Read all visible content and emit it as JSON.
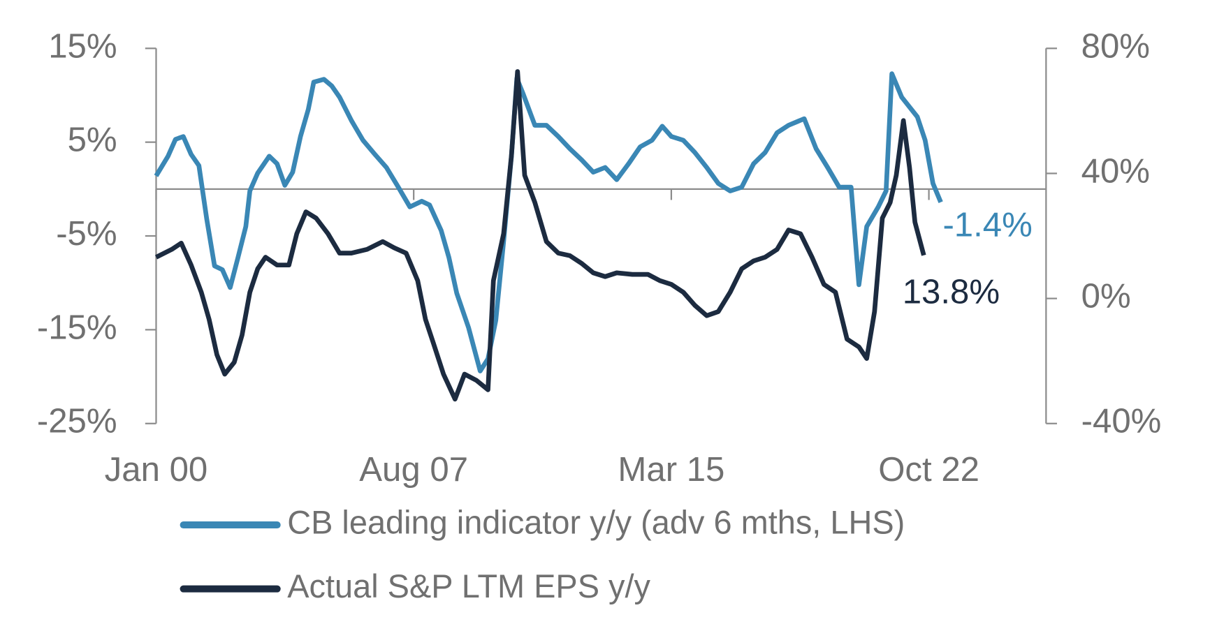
{
  "chart_data": {
    "type": "line",
    "xlim": [
      2000,
      2026.2
    ],
    "xticks": [
      {
        "value": 2000,
        "label": "Jan 00"
      },
      {
        "value": 2007.583,
        "label": "Aug 07"
      },
      {
        "value": 2015.167,
        "label": "Mar 15"
      },
      {
        "value": 2022.75,
        "label": "Oct 22"
      }
    ],
    "ylim": [
      -25,
      15
    ],
    "yticks": [
      {
        "value": 15,
        "label": "15%"
      },
      {
        "value": 5,
        "label": "5%"
      },
      {
        "value": -5,
        "label": "-5%"
      },
      {
        "value": -15,
        "label": "-15%"
      },
      {
        "value": -25,
        "label": "-25%"
      }
    ],
    "y2lim": [
      -40,
      80
    ],
    "y2ticks": [
      {
        "value": 80,
        "label": "80%"
      },
      {
        "value": 40,
        "label": "40%"
      },
      {
        "value": 0,
        "label": "0%"
      },
      {
        "value": -40,
        "label": "-40%"
      }
    ],
    "series": [
      {
        "name": "CB leading indicator y/y (adv 6 mths, LHS)",
        "color": "#3a87b5",
        "end_label": "-1.4%",
        "x": [
          2000,
          2000.35,
          2000.57,
          2000.8,
          2001.03,
          2001.26,
          2001.49,
          2001.72,
          2001.95,
          2002.18,
          2002.41,
          2002.64,
          2002.76,
          2002.99,
          2003.33,
          2003.56,
          2003.79,
          2004.02,
          2004.25,
          2004.48,
          2004.64,
          2004.94,
          2005.17,
          2005.4,
          2005.75,
          2006.09,
          2006.44,
          2006.78,
          2007.13,
          2007.47,
          2007.82,
          2008.05,
          2008.39,
          2008.62,
          2008.85,
          2009.2,
          2009.54,
          2009.77,
          2010,
          2010.23,
          2010.46,
          2010.62,
          2010.8,
          2011.15,
          2011.49,
          2011.84,
          2012.18,
          2012.53,
          2012.87,
          2013.22,
          2013.56,
          2013.91,
          2014.25,
          2014.6,
          2014.9,
          2015.17,
          2015.52,
          2015.86,
          2016.21,
          2016.55,
          2016.9,
          2017.24,
          2017.59,
          2017.93,
          2018.28,
          2018.62,
          2019.08,
          2019.43,
          2019.77,
          2020.11,
          2020.46,
          2020.69,
          2020.92,
          2021.26,
          2021.49,
          2021.66,
          2021.95,
          2022.41,
          2022.64,
          2022.87,
          2023.1
        ],
        "values": [
          1.4,
          3.5,
          5.3,
          5.6,
          3.7,
          2.5,
          -3.2,
          -8.2,
          -8.6,
          -10.5,
          -7.3,
          -4,
          -0.2,
          1.7,
          3.5,
          2.7,
          0.4,
          1.8,
          5.6,
          8.5,
          11.4,
          11.7,
          11,
          9.8,
          7.3,
          5.2,
          3.7,
          2.3,
          0.2,
          -1.9,
          -1.3,
          -1.7,
          -4.4,
          -7.3,
          -11.1,
          -14.8,
          -19.4,
          -18.1,
          -14,
          -5.6,
          3.5,
          11.8,
          10.2,
          6.8,
          6.8,
          5.6,
          4.3,
          3.1,
          1.8,
          2.3,
          1,
          2.7,
          4.5,
          5.2,
          6.7,
          5.6,
          5.2,
          3.9,
          2.3,
          0.6,
          -0.2,
          0.2,
          2.7,
          3.9,
          6,
          6.8,
          7.5,
          4.3,
          2.3,
          0.2,
          0.2,
          -10.2,
          -4,
          -1.9,
          -0.2,
          12.3,
          9.8,
          7.7,
          5.2,
          0.6,
          -1.4
        ]
      },
      {
        "name": "Actual S&P LTM EPS y/y",
        "color": "#1c2b40",
        "axis": "y2",
        "end_label": "13.8%",
        "x": [
          2000,
          2000.46,
          2000.74,
          2001.03,
          2001.33,
          2001.56,
          2001.79,
          2002.02,
          2002.3,
          2002.53,
          2002.76,
          2002.99,
          2003.22,
          2003.56,
          2003.91,
          2004.14,
          2004.41,
          2004.71,
          2005.06,
          2005.4,
          2005.75,
          2006.21,
          2006.67,
          2007.01,
          2007.36,
          2007.7,
          2007.93,
          2008.16,
          2008.46,
          2008.8,
          2009.08,
          2009.43,
          2009.77,
          2009.93,
          2010.23,
          2010.46,
          2010.64,
          2010.85,
          2011.15,
          2011.49,
          2011.84,
          2012.18,
          2012.53,
          2012.87,
          2013.22,
          2013.56,
          2014.02,
          2014.48,
          2014.83,
          2015.17,
          2015.52,
          2015.86,
          2016.21,
          2016.55,
          2016.9,
          2017.24,
          2017.59,
          2017.93,
          2018.28,
          2018.62,
          2018.97,
          2019.31,
          2019.66,
          2020,
          2020.34,
          2020.69,
          2020.92,
          2021.15,
          2021.38,
          2021.61,
          2021.79,
          2022,
          2022.18,
          2022.34,
          2022.6
        ],
        "values": [
          13.2,
          15.7,
          17.7,
          10.7,
          2,
          -6.7,
          -18,
          -24.2,
          -20.4,
          -11.7,
          2,
          9.5,
          13.2,
          10.7,
          10.7,
          20.7,
          27.7,
          25.7,
          20.7,
          14.5,
          14.5,
          15.7,
          18.2,
          16.2,
          14.5,
          5.7,
          -6.7,
          -14.2,
          -24.2,
          -32.2,
          -24.2,
          -26.2,
          -29.2,
          5.7,
          20.7,
          45.6,
          72.6,
          39.4,
          30.7,
          18.2,
          14.5,
          13.7,
          11.2,
          8.2,
          7,
          8.2,
          7.7,
          7.7,
          5.7,
          4.5,
          2,
          -2.2,
          -5.5,
          -4.2,
          2,
          9.5,
          12,
          13.2,
          15.7,
          21.9,
          20.7,
          13.2,
          4.5,
          2,
          -13,
          -15.5,
          -19.2,
          -4.2,
          25.7,
          30.7,
          39.4,
          56.9,
          41.9,
          24.4,
          13.8
        ]
      }
    ]
  }
}
